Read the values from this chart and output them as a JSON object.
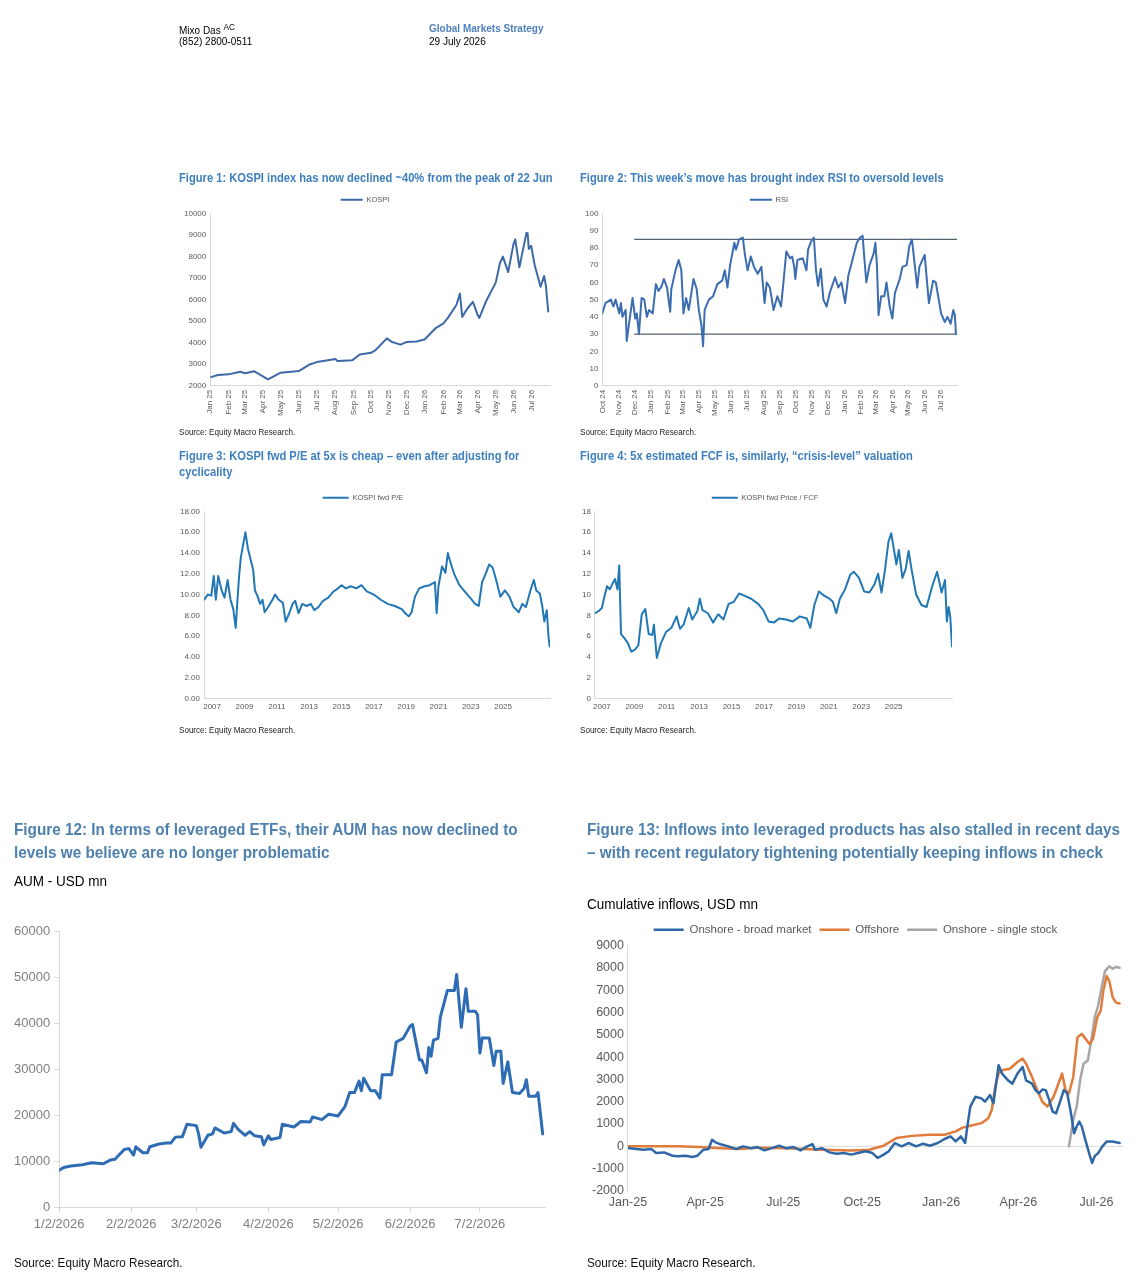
{
  "chart_data": [
    {
      "type": "other",
      "annotations": [
        "Mixo Das $^{AC}$",
        "(852) 2800-0511",
        "Global Markets Strategy",
        "29 July 2026"
      ]
    },
    {
      "type": "line",
      "title": "Figure 1: KOSPI index has now declined ~40% from the peak of 22 Jun",
      "legend": "top",
      "annotations": [
        "Source: Equity Macro Research."
      ],
      "x": [
        "2025-01-02",
        "2025-01-14",
        "2025-02-01",
        "2025-02-21",
        "2025-03-01",
        "2025-03-17",
        "2025-04-09",
        "2025-04-30",
        "2025-06-01",
        "2025-06-19",
        "2025-07-01",
        "2025-08-02",
        "2025-08-05",
        "2025-08-30",
        "2025-09-12",
        "2025-10-01",
        "2025-10-08",
        "2025-10-28",
        "2025-11-06",
        "2025-11-20",
        "2025-11-30",
        "2025-12-17",
        "2025-12-31",
        "2026-01-19",
        "2026-02-01",
        "2026-02-08",
        "2026-02-23",
        "2026-03-01",
        "2026-03-05",
        "2026-03-14",
        "2026-03-23",
        "2026-03-31",
        "2026-04-03",
        "2026-04-14",
        "2026-05-01",
        "2026-05-08",
        "2026-05-13",
        "2026-05-22",
        "2026-05-31",
        "2026-06-03",
        "2026-06-10",
        "2026-06-22",
        "2026-06-24",
        "2026-06-26",
        "2026-06-30",
        "2026-07-06",
        "2026-07-10",
        "2026-07-16",
        "2026-07-22",
        "2026-07-25",
        "2026-07-29"
      ],
      "series": [
        {
          "name": "KOSPI",
          "color": "#3d69a6",
          "values": [
            2400,
            2500,
            2530,
            2650,
            2580,
            2670,
            2300,
            2600,
            2690,
            2990,
            3100,
            3240,
            3150,
            3180,
            3450,
            3530,
            3640,
            4200,
            4030,
            3910,
            4030,
            4060,
            4150,
            4680,
            4900,
            5130,
            5750,
            6280,
            5200,
            5600,
            5900,
            5300,
            5150,
            5900,
            6800,
            7700,
            8000,
            7280,
            8580,
            8800,
            7500,
            9100,
            9080,
            8350,
            8500,
            7600,
            7200,
            6600,
            7100,
            6650,
            5450
          ]
        }
      ],
      "xlim": [
        "2025-01-01",
        "2026-08-01"
      ],
      "xticks": [
        {
          "value": "2025-01",
          "label": "Jan 25"
        },
        {
          "value": "2025-02",
          "label": "Feb 25"
        },
        {
          "value": "2025-03",
          "label": "Mar 25"
        },
        {
          "value": "2025-04",
          "label": "Apr 25"
        },
        {
          "value": "2025-05",
          "label": "May 25"
        },
        {
          "value": "2025-06",
          "label": "Jun 25"
        },
        {
          "value": "2025-07",
          "label": "Jul 25"
        },
        {
          "value": "2025-08",
          "label": "Aug 25"
        },
        {
          "value": "2025-09",
          "label": "Sep 25"
        },
        {
          "value": "2025-10",
          "label": "Oct 25"
        },
        {
          "value": "2025-11",
          "label": "Nov 25"
        },
        {
          "value": "2025-12",
          "label": "Dec 25"
        },
        {
          "value": "2026-01",
          "label": "Jan 26"
        },
        {
          "value": "2026-02",
          "label": "Feb 26"
        },
        {
          "value": "2026-03",
          "label": "Mar 26"
        },
        {
          "value": "2026-04",
          "label": "Apr 26"
        },
        {
          "value": "2026-05",
          "label": "May 26"
        },
        {
          "value": "2026-06",
          "label": "Jun 26"
        },
        {
          "value": "2026-07",
          "label": "Jul 26"
        }
      ],
      "ylim": [
        2000,
        10000
      ],
      "yticks": [
        2000,
        3000,
        4000,
        5000,
        6000,
        7000,
        8000,
        9000,
        10000
      ]
    },
    {
      "type": "line",
      "title": "Figure 2: This week’s move has brought index RSI to oversold levels",
      "legend": "top",
      "annotations": [
        "Source: Equity Macro Research."
      ],
      "x": [
        "2024-10-01",
        "2024-10-07",
        "2024-10-17",
        "2024-10-22",
        "2024-10-26",
        "2024-11-02",
        "2024-11-05",
        "2024-11-08",
        "2024-11-14",
        "2024-11-16",
        "2024-11-27",
        "2024-12-02",
        "2024-12-05",
        "2024-12-09",
        "2024-12-14",
        "2024-12-19",
        "2024-12-24",
        "2024-12-28",
        "2025-01-04",
        "2025-01-10",
        "2025-01-15",
        "2025-01-21",
        "2025-01-25",
        "2025-01-31",
        "2025-02-06",
        "2025-02-08",
        "2025-02-16",
        "2025-02-22",
        "2025-02-27",
        "2025-03-03",
        "2025-03-08",
        "2025-03-13",
        "2025-03-17",
        "2025-03-22",
        "2025-03-28",
        "2025-04-01",
        "2025-04-06",
        "2025-04-09",
        "2025-04-12",
        "2025-04-20",
        "2025-04-28",
        "2025-05-06",
        "2025-05-15",
        "2025-05-20",
        "2025-05-25",
        "2025-05-30",
        "2025-06-07",
        "2025-06-10",
        "2025-06-16",
        "2025-06-23",
        "2025-06-27",
        "2025-07-02",
        "2025-07-08",
        "2025-07-14",
        "2025-07-21",
        "2025-07-28",
        "2025-08-03",
        "2025-08-07",
        "2025-08-13",
        "2025-08-20",
        "2025-08-27",
        "2025-09-03",
        "2025-09-07",
        "2025-09-13",
        "2025-09-20",
        "2025-09-24",
        "2025-09-28",
        "2025-09-30",
        "2025-10-04",
        "2025-10-14",
        "2025-10-21",
        "2025-10-24",
        "2025-10-30",
        "2025-11-04",
        "2025-11-08",
        "2025-11-12",
        "2025-11-17",
        "2025-11-22",
        "2025-11-28",
        "2025-12-04",
        "2025-12-14",
        "2025-12-20",
        "2025-12-26",
        "2026-01-02",
        "2026-01-08",
        "2026-01-14",
        "2026-01-24",
        "2026-01-30",
        "2026-02-04",
        "2026-02-08",
        "2026-02-11",
        "2026-02-17",
        "2026-02-25",
        "2026-02-28",
        "2026-03-03",
        "2026-03-06",
        "2026-03-11",
        "2026-03-17",
        "2026-03-21",
        "2026-03-27",
        "2026-04-01",
        "2026-04-06",
        "2026-04-15",
        "2026-04-20",
        "2026-04-28",
        "2026-05-03",
        "2026-05-08",
        "2026-05-13",
        "2026-05-18",
        "2026-05-22",
        "2026-06-01",
        "2026-06-09",
        "2026-06-17",
        "2026-06-22",
        "2026-06-27",
        "2026-07-02",
        "2026-07-09",
        "2026-07-14",
        "2026-07-20",
        "2026-07-25",
        "2026-07-28",
        "2026-07-30"
      ],
      "series": [
        {
          "name": "RSI",
          "color": "#3b6db0",
          "values": [
            42,
            48,
            50,
            46,
            50,
            42,
            48,
            40,
            44,
            26,
            51,
            39,
            42,
            30,
            51,
            50,
            40,
            44,
            42,
            59,
            55,
            58,
            62,
            57,
            43,
            56,
            67,
            73,
            67,
            42,
            51,
            44,
            52,
            62,
            56,
            44,
            35,
            23,
            44,
            50,
            52,
            59,
            61,
            67,
            57,
            70,
            83,
            79,
            85,
            86,
            76,
            67,
            75,
            69,
            65,
            69,
            48,
            60,
            57,
            44,
            52,
            46,
            58,
            78,
            74,
            75,
            69,
            62,
            73,
            74,
            67,
            79,
            84,
            86,
            67,
            58,
            68,
            50,
            46,
            54,
            63,
            57,
            60,
            48,
            64,
            71,
            83,
            86,
            87,
            71,
            60,
            70,
            77,
            83,
            70,
            41,
            52,
            52,
            60,
            46,
            39,
            54,
            62,
            69,
            70,
            81,
            85,
            71,
            57,
            69,
            76,
            48,
            61,
            60,
            51,
            42,
            37,
            40,
            36,
            44,
            41,
            30
          ]
        },
        {
          "color": "#556270",
          "x": [
            "2024-12-01",
            "2026-07-31"
          ],
          "values": [
            85,
            85
          ]
        },
        {
          "color": "#556270",
          "x": [
            "2024-12-01",
            "2026-07-31"
          ],
          "values": [
            30,
            30
          ]
        }
      ],
      "xlim": [
        "2024-10-01",
        "2026-08-01"
      ],
      "xticks": [
        {
          "value": "2024-10",
          "label": "Oct 24"
        },
        {
          "value": "2024-11",
          "label": "Nov 24"
        },
        {
          "value": "2024-12",
          "label": "Dec 24"
        },
        {
          "value": "2025-01",
          "label": "Jan 25"
        },
        {
          "value": "2025-02",
          "label": "Feb 25"
        },
        {
          "value": "2025-03",
          "label": "Mar 25"
        },
        {
          "value": "2025-04",
          "label": "Apr 25"
        },
        {
          "value": "2025-05",
          "label": "May 25"
        },
        {
          "value": "2025-06",
          "label": "Jun 25"
        },
        {
          "value": "2025-07",
          "label": "Jul 25"
        },
        {
          "value": "2025-08",
          "label": "Aug 25"
        },
        {
          "value": "2025-09",
          "label": "Sep 25"
        },
        {
          "value": "2025-10",
          "label": "Oct 25"
        },
        {
          "value": "2025-11",
          "label": "Nov 25"
        },
        {
          "value": "2025-12",
          "label": "Dec 25"
        },
        {
          "value": "2026-01",
          "label": "Jan 26"
        },
        {
          "value": "2026-02",
          "label": "Feb 26"
        },
        {
          "value": "2026-03",
          "label": "Mar 26"
        },
        {
          "value": "2026-04",
          "label": "Apr 26"
        },
        {
          "value": "2026-05",
          "label": "May 26"
        },
        {
          "value": "2026-06",
          "label": "Jun 26"
        },
        {
          "value": "2026-07",
          "label": "Jul 26"
        }
      ],
      "ylim": [
        0,
        100
      ],
      "yticks": [
        0,
        10,
        20,
        30,
        40,
        50,
        60,
        70,
        80,
        90,
        100
      ]
    },
    {
      "type": "line",
      "title": "Figure 3: KOSPI fwd P/E at 5x is cheap – even after adjusting for cyclicality",
      "legend": "top",
      "annotations": [
        "Source: Equity Macro Research."
      ],
      "x": [
        2006.51,
        2006.73,
        2006.95,
        2007.1,
        2007.23,
        2007.38,
        2007.59,
        2007.77,
        2007.96,
        2008.14,
        2008.31,
        2008.46,
        2008.57,
        2008.68,
        2008.78,
        2009.06,
        2009.22,
        2009.39,
        2009.54,
        2009.65,
        2009.82,
        2009.97,
        2010.12,
        2010.25,
        2010.51,
        2010.73,
        2010.9,
        2011.12,
        2011.38,
        2011.55,
        2011.77,
        2011.98,
        2012.14,
        2012.35,
        2012.57,
        2012.85,
        2013.11,
        2013.32,
        2013.58,
        2013.86,
        2014.19,
        2014.51,
        2014.79,
        2015.01,
        2015.27,
        2015.59,
        2015.92,
        2016.24,
        2016.57,
        2017.0,
        2017.43,
        2017.86,
        2018.3,
        2018.73,
        2018.95,
        2019.16,
        2019.34,
        2019.55,
        2019.81,
        2020.14,
        2020.46,
        2020.78,
        2020.89,
        2021.0,
        2021.22,
        2021.43,
        2021.58,
        2021.76,
        2021.97,
        2022.3,
        2022.62,
        2022.95,
        2023.27,
        2023.49,
        2023.7,
        2023.92,
        2024.14,
        2024.35,
        2024.57,
        2024.83,
        2025.11,
        2025.39,
        2025.65,
        2025.97,
        2026.19,
        2026.41,
        2026.69,
        2026.9,
        2027.05,
        2027.27,
        2027.42,
        2027.55,
        2027.7,
        2027.81,
        2027.88
      ],
      "series": [
        {
          "name": "KOSPI fwd P/E",
          "color": "#2277b5",
          "values": [
            9.5,
            10.0,
            9.9,
            11.8,
            9.5,
            11.8,
            10.4,
            9.7,
            11.4,
            9.5,
            8.6,
            6.8,
            9.5,
            12.0,
            13.6,
            16.0,
            14.4,
            13.3,
            12.4,
            10.4,
            9.8,
            9.1,
            9.5,
            8.3,
            8.9,
            9.5,
            10.0,
            9.5,
            9.2,
            7.4,
            8.2,
            9.1,
            9.4,
            8.2,
            9.1,
            8.9,
            9.1,
            8.5,
            8.8,
            9.4,
            9.7,
            10.3,
            10.6,
            10.9,
            10.6,
            10.8,
            10.6,
            10.9,
            10.3,
            10.0,
            9.5,
            9.1,
            8.9,
            8.6,
            8.2,
            7.9,
            8.3,
            9.8,
            10.6,
            10.8,
            10.9,
            11.2,
            8.2,
            10.8,
            12.7,
            12.1,
            14.0,
            13.0,
            12.0,
            10.9,
            10.3,
            9.7,
            9.1,
            8.9,
            11.2,
            12.0,
            12.9,
            12.6,
            11.4,
            9.8,
            10.4,
            9.8,
            8.8,
            8.3,
            9.1,
            8.8,
            10.4,
            11.4,
            10.4,
            10.1,
            8.9,
            7.4,
            8.5,
            5.9,
            5.0
          ]
        }
      ],
      "xlim": [
        2006.5,
        2027.9
      ],
      "xticks": [
        2007,
        2009,
        2011,
        2013,
        2015,
        2017,
        2019,
        2021,
        2023,
        2025
      ],
      "ylim": [
        0,
        18
      ],
      "yticks": [
        {
          "value": 0,
          "label": "0.00"
        },
        {
          "value": 2,
          "label": "2.00"
        },
        {
          "value": 4,
          "label": "4.00"
        },
        {
          "value": 6,
          "label": "6.00"
        },
        {
          "value": 8,
          "label": "8.00"
        },
        {
          "value": 10,
          "label": "10.00"
        },
        {
          "value": 12,
          "label": "12.00"
        },
        {
          "value": 14,
          "label": "14.00"
        },
        {
          "value": 16,
          "label": "16.00"
        },
        {
          "value": 18,
          "label": "18.00"
        }
      ]
    },
    {
      "type": "line",
      "title": "Figure 4: 5x estimated FCF is, similarly, “crisis-level” valuation",
      "legend": "top",
      "annotations": [
        "Source: Equity Macro Research."
      ],
      "x": [
        2006.57,
        2006.79,
        2007.0,
        2007.17,
        2007.32,
        2007.49,
        2007.64,
        2007.81,
        2007.96,
        2008.07,
        2008.18,
        2008.39,
        2008.61,
        2008.82,
        2009.04,
        2009.25,
        2009.46,
        2009.68,
        2009.89,
        2010.11,
        2010.21,
        2010.39,
        2010.64,
        2010.96,
        2011.29,
        2011.61,
        2011.82,
        2012.04,
        2012.36,
        2012.57,
        2012.89,
        2013.04,
        2013.21,
        2013.54,
        2013.86,
        2014.18,
        2014.5,
        2014.82,
        2015.14,
        2015.46,
        2015.79,
        2016.21,
        2016.64,
        2016.96,
        2017.29,
        2017.61,
        2017.93,
        2018.36,
        2018.79,
        2019.21,
        2019.64,
        2019.86,
        2020.11,
        2020.39,
        2020.71,
        2021.04,
        2021.25,
        2021.46,
        2021.68,
        2022.0,
        2022.32,
        2022.54,
        2022.86,
        2023.18,
        2023.5,
        2023.82,
        2024.04,
        2024.25,
        2024.46,
        2024.68,
        2024.85,
        2025.0,
        2025.17,
        2025.32,
        2025.54,
        2025.75,
        2025.92,
        2026.13,
        2026.39,
        2026.71,
        2027.03,
        2027.36,
        2027.68,
        2027.96,
        2028.17,
        2028.28,
        2028.39,
        2028.49,
        2028.6
      ],
      "series": [
        {
          "name": "KOSPI fwd Price / FCF",
          "color": "#2277b5",
          "values": [
            8.2,
            8.4,
            8.7,
            9.9,
            10.8,
            10.5,
            11.0,
            11.5,
            10.5,
            12.8,
            6.2,
            5.8,
            5.3,
            4.5,
            4.7,
            5.1,
            8.1,
            8.6,
            6.2,
            6.1,
            7.1,
            3.9,
            5.3,
            6.4,
            6.8,
            7.9,
            6.7,
            7.1,
            8.7,
            7.6,
            8.4,
            9.6,
            8.5,
            8.2,
            7.3,
            8.1,
            7.6,
            9.1,
            9.3,
            10.1,
            9.9,
            9.6,
            9.1,
            8.5,
            7.4,
            7.3,
            7.7,
            7.6,
            7.4,
            7.9,
            7.7,
            6.8,
            9.0,
            10.3,
            9.9,
            9.6,
            9.3,
            8.2,
            9.6,
            10.5,
            11.9,
            12.2,
            11.6,
            10.3,
            10.2,
            11.0,
            12.0,
            10.2,
            12.3,
            15.1,
            15.9,
            14.5,
            12.9,
            14.3,
            11.6,
            12.5,
            14.2,
            12.2,
            10.0,
            9.0,
            8.8,
            10.7,
            12.2,
            10.2,
            11.4,
            7.4,
            8.8,
            7.9,
            5.0
          ]
        }
      ],
      "xlim": [
        2006.57,
        2028.6
      ],
      "xticks": [
        2007,
        2009,
        2011,
        2013,
        2015,
        2017,
        2019,
        2021,
        2023,
        2025
      ],
      "ylim": [
        0,
        18
      ],
      "yticks": [
        0,
        2,
        4,
        6,
        8,
        10,
        12,
        14,
        16,
        18
      ]
    },
    {
      "type": "line",
      "title": "Figure 12: In terms of leveraged ETFs, their AUM has now declined to levels we believe are no longer problematic",
      "ylabel": "AUM - USD mn",
      "annotations": [
        "Source: Equity Macro Research."
      ],
      "x": [
        "2026-01-02",
        "2026-01-04",
        "2026-01-07",
        "2026-01-12",
        "2026-01-16",
        "2026-01-21",
        "2026-01-24",
        "2026-01-26",
        "2026-01-30",
        "2026-02-01",
        "2026-02-03",
        "2026-02-04",
        "2026-02-07",
        "2026-02-09",
        "2026-02-10",
        "2026-02-14",
        "2026-02-17",
        "2026-02-19",
        "2026-02-21",
        "2026-02-24",
        "2026-02-26",
        "2026-03-02",
        "2026-03-03",
        "2026-03-04",
        "2026-03-07",
        "2026-03-09",
        "2026-03-10",
        "2026-03-14",
        "2026-03-17",
        "2026-03-18",
        "2026-03-20",
        "2026-03-23",
        "2026-03-25",
        "2026-03-27",
        "2026-03-30",
        "2026-03-31",
        "2026-04-02",
        "2026-04-03",
        "2026-04-07",
        "2026-04-08",
        "2026-04-13",
        "2026-04-16",
        "2026-04-20",
        "2026-04-21",
        "2026-04-25",
        "2026-04-28",
        "2026-05-02",
        "2026-05-05",
        "2026-05-07",
        "2026-05-09",
        "2026-05-11",
        "2026-05-12",
        "2026-05-13",
        "2026-05-16",
        "2026-05-18",
        "2026-05-20",
        "2026-05-21",
        "2026-05-25",
        "2026-05-27",
        "2026-05-30",
        "2026-06-02",
        "2026-06-03",
        "2026-06-06",
        "2026-06-07",
        "2026-06-09",
        "2026-06-10",
        "2026-06-11",
        "2026-06-12",
        "2026-06-14",
        "2026-06-15",
        "2026-06-18",
        "2026-06-21",
        "2026-06-22",
        "2026-06-24",
        "2026-06-26",
        "2026-06-27",
        "2026-06-30",
        "2026-07-01",
        "2026-07-02",
        "2026-07-03",
        "2026-07-06",
        "2026-07-08",
        "2026-07-09",
        "2026-07-11",
        "2026-07-12",
        "2026-07-14",
        "2026-07-16",
        "2026-07-19",
        "2026-07-21",
        "2026-07-22",
        "2026-07-23",
        "2026-07-26",
        "2026-07-27",
        "2026-07-29"
      ],
      "series": [
        {
          "color": "#2e6cb4",
          "values": [
            8100,
            8700,
            9000,
            9300,
            9700,
            9500,
            10300,
            10500,
            12600,
            12800,
            11400,
            13200,
            11900,
            11900,
            13200,
            13800,
            14000,
            14000,
            15300,
            15400,
            18100,
            17800,
            16000,
            13100,
            15700,
            16000,
            17300,
            16200,
            16500,
            18300,
            17000,
            15700,
            16500,
            15600,
            15400,
            13600,
            15600,
            14800,
            15200,
            18100,
            17500,
            18700,
            18600,
            19700,
            19100,
            20300,
            19900,
            22000,
            25000,
            25000,
            27500,
            25400,
            28100,
            25400,
            25400,
            23800,
            28900,
            28900,
            36000,
            36800,
            39500,
            39800,
            32100,
            32100,
            29300,
            34800,
            32900,
            36400,
            36800,
            41500,
            47200,
            47200,
            50700,
            39200,
            47600,
            42700,
            42700,
            41900,
            33600,
            36900,
            36900,
            30900,
            34000,
            34000,
            27000,
            31700,
            25000,
            24800,
            25900,
            27800,
            24200,
            24200,
            25000,
            16000
          ]
        }
      ],
      "xlim": [
        "2026-01-02",
        "2026-07-30"
      ],
      "xticks": [
        {
          "value": "2026-01-02",
          "label": "1/2/2026"
        },
        {
          "value": "2026-02-02",
          "label": "2/2/2026"
        },
        {
          "value": "2026-03-02",
          "label": "3/2/2026"
        },
        {
          "value": "2026-04-02",
          "label": "4/2/2026"
        },
        {
          "value": "2026-05-02",
          "label": "5/2/2026"
        },
        {
          "value": "2026-06-02",
          "label": "6/2/2026"
        },
        {
          "value": "2026-07-02",
          "label": "7/2/2026"
        }
      ],
      "ylim": [
        0,
        60000
      ],
      "yticks": [
        0,
        10000,
        20000,
        30000,
        40000,
        50000,
        60000
      ]
    },
    {
      "type": "line",
      "title": "Figure 13: Inflows into leveraged products has also stalled in recent days – with recent regulatory tightening potentially keeping inflows in check",
      "ylabel": "Cumulative inflows, USD mn",
      "legend": "top",
      "annotations": [
        "Source: Equity Macro Research."
      ],
      "series": [
        {
          "name": "Onshore - broad market",
          "color": "#2f67a6",
          "x": [
            "2025-01-01",
            "2025-01-11",
            "2025-01-19",
            "2025-01-28",
            "2025-02-03",
            "2025-02-12",
            "2025-02-22",
            "2025-02-28",
            "2025-03-09",
            "2025-03-17",
            "2025-03-23",
            "2025-03-30",
            "2025-04-05",
            "2025-04-09",
            "2025-04-13",
            "2025-04-20",
            "2025-04-28",
            "2025-05-07",
            "2025-05-15",
            "2025-05-24",
            "2025-06-01",
            "2025-06-09",
            "2025-06-18",
            "2025-06-26",
            "2025-07-04",
            "2025-07-13",
            "2025-07-21",
            "2025-07-29",
            "2025-08-04",
            "2025-08-07",
            "2025-08-15",
            "2025-08-24",
            "2025-09-01",
            "2025-09-10",
            "2025-09-18",
            "2025-09-26",
            "2025-10-05",
            "2025-10-13",
            "2025-10-19",
            "2025-10-26",
            "2025-11-01",
            "2025-11-08",
            "2025-11-16",
            "2025-11-24",
            "2025-12-03",
            "2025-12-11",
            "2025-12-19",
            "2025-12-28",
            "2026-01-05",
            "2026-01-12",
            "2026-01-18",
            "2026-01-24",
            "2026-01-29",
            "2026-01-31",
            "2026-02-04",
            "2026-02-10",
            "2026-02-17",
            "2026-02-21",
            "2026-02-27",
            "2026-03-03",
            "2026-03-09",
            "2026-03-13",
            "2026-03-20",
            "2026-03-25",
            "2026-03-31",
            "2026-04-06",
            "2026-04-10",
            "2026-04-17",
            "2026-04-21",
            "2026-04-25",
            "2026-04-29",
            "2026-05-03",
            "2026-05-07",
            "2026-05-11",
            "2026-05-15",
            "2026-05-19",
            "2026-05-24",
            "2026-05-28",
            "2026-06-01",
            "2026-06-05",
            "2026-06-08",
            "2026-06-11",
            "2026-06-14",
            "2026-06-18",
            "2026-06-23",
            "2026-06-26",
            "2026-06-29",
            "2026-07-03",
            "2026-07-08",
            "2026-07-13",
            "2026-07-19",
            "2026-07-24",
            "2026-07-28"
          ],
          "values": [
            -70,
            -120,
            -150,
            -120,
            -300,
            -270,
            -420,
            -440,
            -420,
            -480,
            -420,
            -150,
            -120,
            300,
            180,
            80,
            0,
            -120,
            0,
            -80,
            -30,
            -180,
            -80,
            30,
            -80,
            -30,
            -180,
            0,
            100,
            -150,
            -80,
            -270,
            -330,
            -300,
            -370,
            -300,
            -220,
            -300,
            -520,
            -370,
            -220,
            150,
            0,
            150,
            0,
            120,
            30,
            150,
            330,
            450,
            220,
            450,
            150,
            740,
            1780,
            2220,
            2150,
            2000,
            2300,
            1930,
            3630,
            3260,
            2960,
            2810,
            3260,
            3560,
            2960,
            2810,
            2520,
            2370,
            2550,
            2520,
            2070,
            1560,
            1480,
            1930,
            2520,
            2370,
            1560,
            590,
            890,
            1110,
            890,
            300,
            -370,
            -740,
            -440,
            -300,
            0,
            220,
            220,
            180,
            150
          ]
        },
        {
          "name": "Offshore",
          "color": "#e07b39",
          "x": [
            "2025-01-01",
            "2025-02-28",
            "2025-03-25",
            "2025-04-20",
            "2025-05-11",
            "2025-06-01",
            "2025-07-04",
            "2025-08-15",
            "2025-09-18",
            "2025-10-09",
            "2025-10-26",
            "2025-11-10",
            "2025-11-28",
            "2025-12-19",
            "2026-01-05",
            "2026-01-18",
            "2026-01-26",
            "2026-02-04",
            "2026-02-17",
            "2026-02-25",
            "2026-03-01",
            "2026-03-05",
            "2026-03-09",
            "2026-03-13",
            "2026-03-22",
            "2026-03-31",
            "2026-04-06",
            "2026-04-10",
            "2026-04-17",
            "2026-04-23",
            "2026-04-29",
            "2026-05-05",
            "2026-05-12",
            "2026-05-17",
            "2026-05-22",
            "2026-05-26",
            "2026-05-30",
            "2026-06-04",
            "2026-06-09",
            "2026-06-14",
            "2026-06-23",
            "2026-06-27",
            "2026-07-02",
            "2026-07-06",
            "2026-07-09",
            "2026-07-13",
            "2026-07-16",
            "2026-07-20",
            "2026-07-24",
            "2026-07-28"
          ],
          "values": [
            0,
            0,
            -30,
            -80,
            -120,
            -60,
            -80,
            -150,
            -180,
            -150,
            30,
            370,
            470,
            520,
            520,
            670,
            840,
            920,
            1040,
            1260,
            1630,
            2670,
            3260,
            3410,
            3480,
            3780,
            3930,
            3700,
            3110,
            2520,
            2000,
            1780,
            2220,
            2740,
            3260,
            2520,
            2370,
            3110,
            4890,
            5040,
            4590,
            4810,
            5780,
            6070,
            6960,
            7630,
            7410,
            6670,
            6440,
            6400
          ]
        },
        {
          "name": "Onshore - single stock",
          "color": "#a6a6a6",
          "x": [
            "2026-05-30",
            "2026-06-04",
            "2026-06-08",
            "2026-06-12",
            "2026-06-16",
            "2026-06-21",
            "2026-06-25",
            "2026-06-29",
            "2026-07-03",
            "2026-07-07",
            "2026-07-11",
            "2026-07-16",
            "2026-07-20",
            "2026-07-24",
            "2026-07-28"
          ],
          "values": [
            0,
            1190,
            1780,
            2960,
            3700,
            3850,
            4740,
            5780,
            6300,
            7110,
            7850,
            8070,
            7960,
            8040,
            8000
          ]
        }
      ],
      "xlim": [
        "2025-01-01",
        "2026-08-01"
      ],
      "xticks": [
        {
          "value": "2025-01",
          "label": "Jan-25"
        },
        {
          "value": "2025-04",
          "label": "Apr-25"
        },
        {
          "value": "2025-07",
          "label": "Jul-25"
        },
        {
          "value": "2025-10",
          "label": "Oct-25"
        },
        {
          "value": "2026-01",
          "label": "Jan-26"
        },
        {
          "value": "2026-04",
          "label": "Apr-26"
        },
        {
          "value": "2026-07",
          "label": "Jul-26"
        }
      ],
      "ylim": [
        -2000,
        9000
      ],
      "yticks": [
        -2000,
        -1000,
        0,
        1000,
        2000,
        3000,
        4000,
        5000,
        6000,
        7000,
        8000,
        9000
      ]
    }
  ]
}
